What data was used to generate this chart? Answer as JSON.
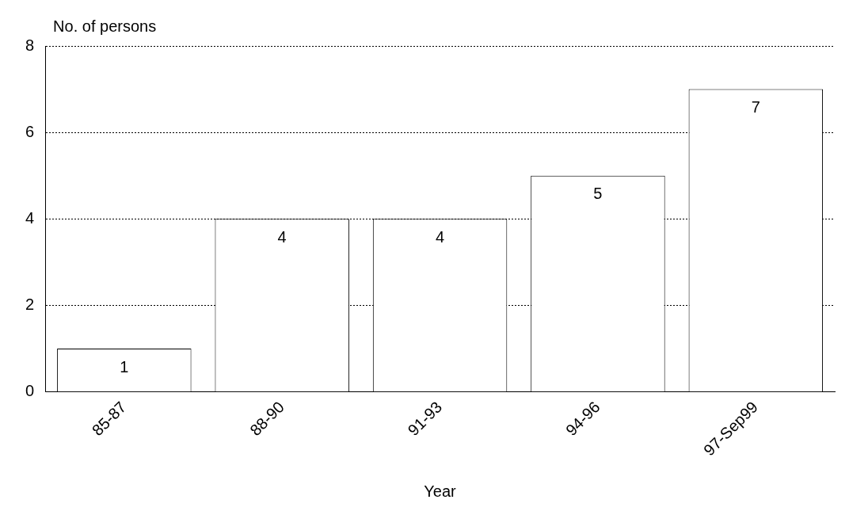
{
  "chart_data": {
    "type": "bar",
    "xlabel": "Year",
    "ylabel": "No. of persons",
    "categories": [
      "85-87",
      "88-90",
      "91-93",
      "94-96",
      "97-Sep99"
    ],
    "values": [
      1,
      4,
      4,
      5,
      7
    ],
    "color": "#ffffff",
    "ylim": [
      0,
      8
    ],
    "yticks": [
      0,
      2,
      4,
      6,
      8
    ],
    "grid": "y",
    "data_labels": true
  }
}
